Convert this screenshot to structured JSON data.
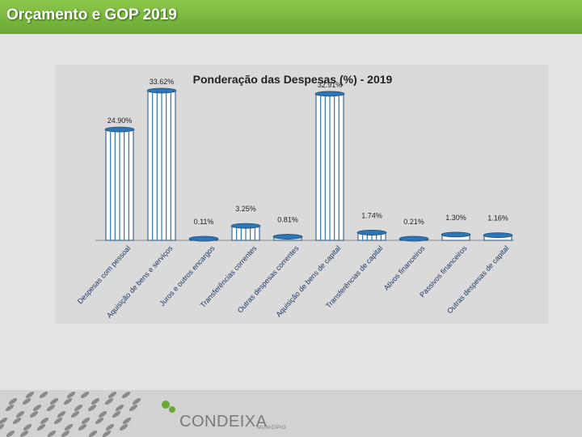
{
  "header": {
    "title": "Orçamento e GOP 2019"
  },
  "logo": {
    "name": "CONDEIXA",
    "sub": "MUNICÍPIO"
  },
  "chart_data": {
    "type": "bar",
    "title": "Ponderação das Despesas (%) - 2019",
    "categories": [
      "Despesas com pessoal",
      "Aquisição de bens e serviços",
      "Juros e outros encargos",
      "Transferências correntes",
      "Outras despesas correntes",
      "Aquisição de bens de capital",
      "Transferências de capital",
      "Ativos financeiros",
      "Passivos financeiros",
      "Outras despesas de capital"
    ],
    "values": [
      24.9,
      33.62,
      0.11,
      3.25,
      0.81,
      32.91,
      1.74,
      0.21,
      1.3,
      1.16
    ],
    "data_labels": [
      "24.90%",
      "33.62%",
      "0.11%",
      "3.25%",
      "0.81%",
      "32.91%",
      "1.74%",
      "0.21%",
      "1.30%",
      "1.16%"
    ],
    "ylim": [
      0,
      35
    ],
    "colors": {
      "bar": "#ffffff",
      "outline": "#1f4e79",
      "stripe": "#2e75b6"
    }
  }
}
